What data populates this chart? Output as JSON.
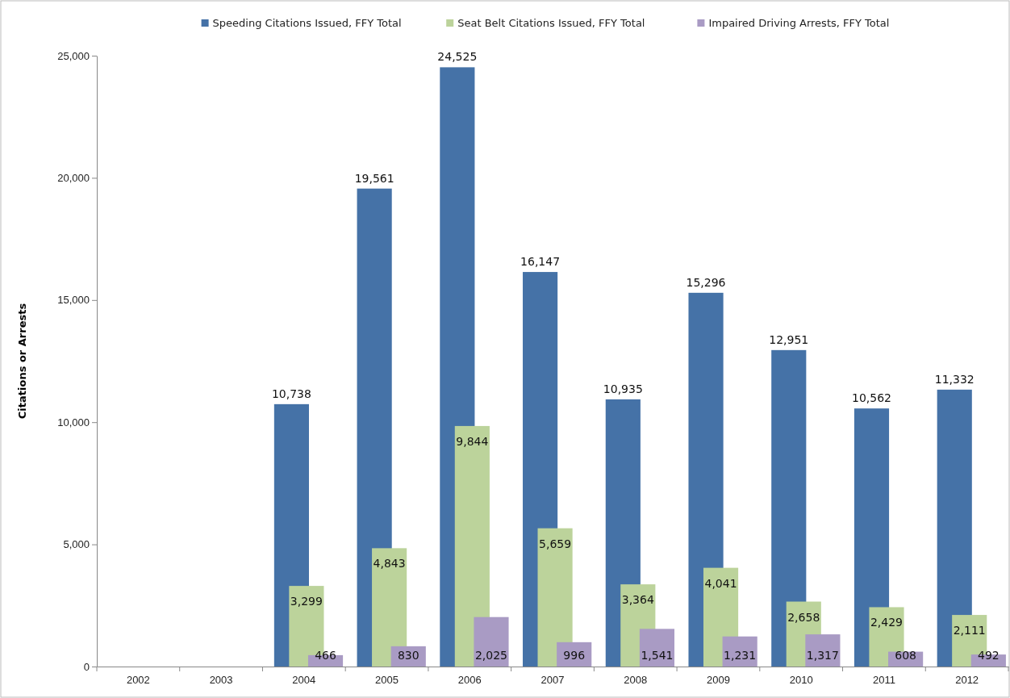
{
  "chart_data": {
    "type": "bar",
    "ylabel": "Citations or Arrests",
    "categories": [
      "2002",
      "2003",
      "2004",
      "2005",
      "2006",
      "2007",
      "2008",
      "2009",
      "2010",
      "2011",
      "2012"
    ],
    "series": [
      {
        "name": "Speeding Citations Issued, FFY Total",
        "color": "#4572a7",
        "values": [
          null,
          null,
          10738,
          19561,
          24525,
          16147,
          10935,
          15296,
          12951,
          10562,
          11332
        ],
        "value_labels": [
          null,
          null,
          "10,738",
          "19,561",
          "24,525",
          "16,147",
          "10,935",
          "15,296",
          "12,951",
          "10,562",
          "11,332"
        ]
      },
      {
        "name": "Seat Belt Citations Issued, FFY Total",
        "color": "#bcd39b",
        "values": [
          null,
          null,
          3299,
          4843,
          9844,
          5659,
          3364,
          4041,
          2658,
          2429,
          2111
        ],
        "value_labels": [
          null,
          null,
          "3,299",
          "4,843",
          "9,844",
          "5,659",
          "3,364",
          "4,041",
          "2,658",
          "2,429",
          "2,111"
        ]
      },
      {
        "name": "Impaired Driving Arrests, FFY Total",
        "color": "#a99bc4",
        "values": [
          null,
          null,
          466,
          830,
          2025,
          996,
          1541,
          1231,
          1317,
          608,
          492
        ],
        "value_labels": [
          null,
          null,
          "466",
          "830",
          "2,025",
          "996",
          "1,541",
          "1,231",
          "1,317",
          "608",
          "492"
        ]
      }
    ],
    "ylim": [
      0,
      25000
    ],
    "yticks": [
      {
        "value": 0,
        "label": "0"
      },
      {
        "value": 5000,
        "label": "5,000"
      },
      {
        "value": 10000,
        "label": "10,000"
      },
      {
        "value": 15000,
        "label": "15,000"
      },
      {
        "value": 20000,
        "label": "20,000"
      },
      {
        "value": 25000,
        "label": "25,000"
      }
    ],
    "grid": false,
    "legend": "top"
  }
}
